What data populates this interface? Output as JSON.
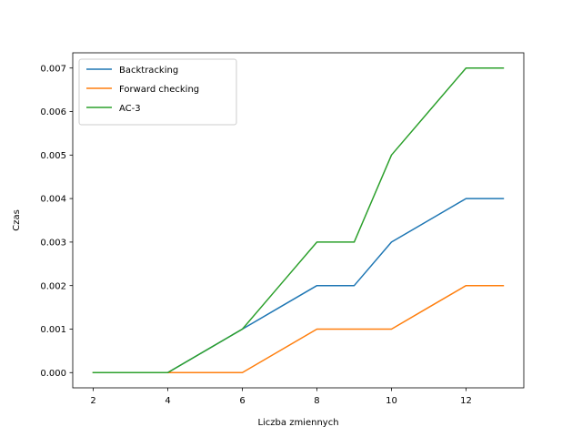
{
  "chart_data": {
    "type": "line",
    "xlabel": "Liczba zmiennych",
    "ylabel": "Czas",
    "x": [
      2,
      3,
      4,
      5,
      6,
      7,
      8,
      9,
      10,
      11,
      12,
      13
    ],
    "xticks": [
      "2",
      "4",
      "6",
      "8",
      "10",
      "12"
    ],
    "yticks": [
      "0.000",
      "0.001",
      "0.002",
      "0.003",
      "0.004",
      "0.005",
      "0.006",
      "0.007"
    ],
    "xlim": [
      1.45,
      13.55
    ],
    "ylim": [
      -0.00035,
      0.00735
    ],
    "grid": false,
    "legend_position": "upper-left",
    "series": [
      {
        "name": "Backtracking",
        "color": "#1f77b4",
        "values": [
          0,
          0,
          0,
          0.0005,
          0.001,
          0.0015,
          0.002,
          0.002,
          0.003,
          0.0035,
          0.004,
          0.004
        ]
      },
      {
        "name": "Forward checking",
        "color": "#ff7f0e",
        "values": [
          0,
          0,
          0,
          0,
          0,
          0.0005,
          0.001,
          0.001,
          0.001,
          0.0015,
          0.002,
          0.002
        ]
      },
      {
        "name": "AC-3",
        "color": "#2ca02c",
        "values": [
          0,
          0,
          0,
          0.0005,
          0.001,
          0.002,
          0.003,
          0.003,
          0.005,
          0.006,
          0.007,
          0.007
        ]
      }
    ]
  }
}
